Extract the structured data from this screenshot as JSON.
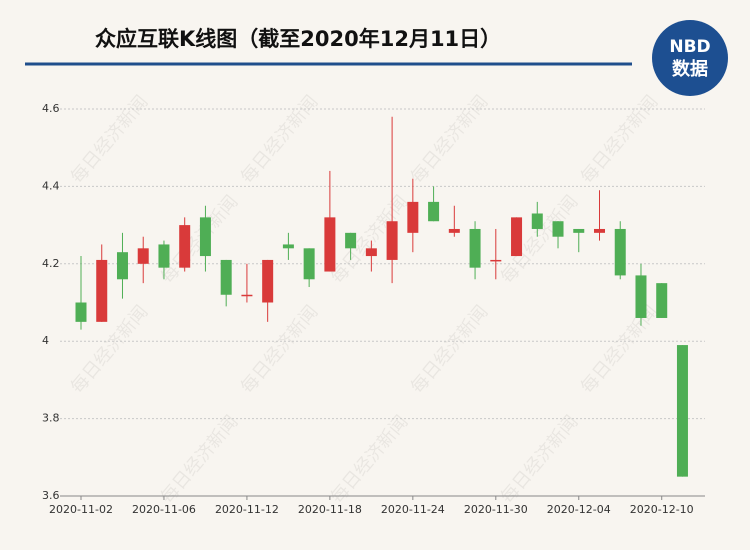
{
  "chart_data": {
    "type": "candlestick",
    "title": "众应互联K线图（截至2020年12月11日）",
    "logo_top": "NBD",
    "logo_bottom": "数据",
    "watermark": "每日经济新闻",
    "categories": [
      "2020-11-02",
      null,
      null,
      null,
      "2020-11-06",
      null,
      null,
      null,
      "2020-11-12",
      null,
      null,
      null,
      "2020-11-18",
      null,
      null,
      null,
      "2020-11-24",
      null,
      null,
      null,
      "2020-11-30",
      null,
      null,
      null,
      "2020-12-04",
      null,
      null,
      null,
      "2020-12-10",
      null
    ],
    "open": [
      4.1,
      4.05,
      4.23,
      4.2,
      4.25,
      4.19,
      4.32,
      4.21,
      4.12,
      4.1,
      4.25,
      4.24,
      4.18,
      4.28,
      4.22,
      4.21,
      4.28,
      4.36,
      4.28,
      4.29,
      4.21,
      4.22,
      4.33,
      4.31,
      4.29,
      4.28,
      4.29,
      4.17,
      4.15,
      3.99
    ],
    "high": [
      4.22,
      4.25,
      4.28,
      4.27,
      4.26,
      4.32,
      4.35,
      4.21,
      4.2,
      4.21,
      4.28,
      4.24,
      4.44,
      4.28,
      4.26,
      4.58,
      4.42,
      4.4,
      4.35,
      4.31,
      4.29,
      4.32,
      4.36,
      4.31,
      4.29,
      4.39,
      4.31,
      4.2,
      4.15,
      3.99
    ],
    "low": [
      4.03,
      4.05,
      4.11,
      4.15,
      4.16,
      4.18,
      4.18,
      4.09,
      4.1,
      4.05,
      4.21,
      4.14,
      4.18,
      4.21,
      4.18,
      4.15,
      4.23,
      4.31,
      4.27,
      4.16,
      4.16,
      4.22,
      4.27,
      4.24,
      4.23,
      4.26,
      4.16,
      4.04,
      4.06,
      3.65
    ],
    "close": [
      4.05,
      4.21,
      4.16,
      4.24,
      4.19,
      4.3,
      4.22,
      4.12,
      4.12,
      4.21,
      4.24,
      4.16,
      4.32,
      4.24,
      4.24,
      4.31,
      4.36,
      4.31,
      4.29,
      4.19,
      4.21,
      4.32,
      4.29,
      4.27,
      4.28,
      4.29,
      4.17,
      4.06,
      4.06,
      3.65
    ],
    "up_color": "#d93a3a",
    "down_color": "#4fae55",
    "ylim": [
      3.6,
      4.6
    ],
    "yticks": [
      3.6,
      3.8,
      4,
      4.2,
      4.4,
      4.6
    ],
    "grid": true
  }
}
